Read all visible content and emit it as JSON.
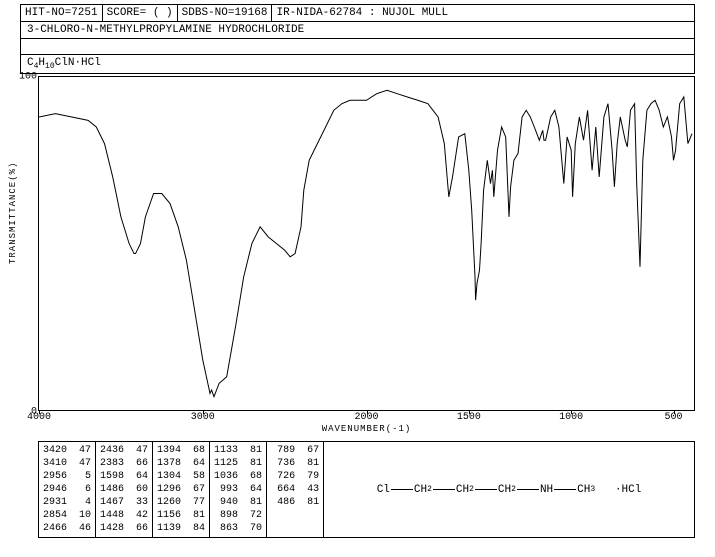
{
  "header": {
    "hit_no": "HIT-NO=7251",
    "score": "SCORE=  (  )",
    "sdbs": "SDBS-NO=19168",
    "ir": "IR-NIDA-62784 : NUJOL MULL"
  },
  "compound_name": "3-CHLORO-N-METHYLPROPYLAMINE HYDROCHLORIDE",
  "formula_plain": "C4H10ClN·HCl",
  "chart": {
    "y_label": "TRANSMITTANCE(%)",
    "x_label": "WAVENUMBER(-1)",
    "y_ticks": [
      {
        "val": "0",
        "pos": 0
      },
      {
        "val": "100",
        "pos": 100
      }
    ],
    "x_ticks": [
      {
        "val": "4000",
        "pos": 4000
      },
      {
        "val": "3000",
        "pos": 3000
      },
      {
        "val": "2000",
        "pos": 2000
      },
      {
        "val": "1500",
        "pos": 1500
      },
      {
        "val": "1000",
        "pos": 1000
      },
      {
        "val": "500",
        "pos": 500
      }
    ],
    "x_min": 400,
    "x_max": 4000,
    "y_min": 0,
    "y_max": 100,
    "line_color": "#000000",
    "background_color": "#ffffff",
    "spectrum": [
      [
        4000,
        88
      ],
      [
        3900,
        89
      ],
      [
        3800,
        88
      ],
      [
        3700,
        87
      ],
      [
        3650,
        85
      ],
      [
        3600,
        80
      ],
      [
        3550,
        70
      ],
      [
        3500,
        58
      ],
      [
        3450,
        50
      ],
      [
        3420,
        47
      ],
      [
        3410,
        47
      ],
      [
        3380,
        50
      ],
      [
        3350,
        58
      ],
      [
        3300,
        65
      ],
      [
        3250,
        65
      ],
      [
        3200,
        62
      ],
      [
        3150,
        55
      ],
      [
        3100,
        45
      ],
      [
        3050,
        30
      ],
      [
        3000,
        15
      ],
      [
        2956,
        5
      ],
      [
        2946,
        6
      ],
      [
        2931,
        4
      ],
      [
        2900,
        8
      ],
      [
        2854,
        10
      ],
      [
        2800,
        25
      ],
      [
        2750,
        40
      ],
      [
        2700,
        50
      ],
      [
        2650,
        55
      ],
      [
        2600,
        52
      ],
      [
        2550,
        50
      ],
      [
        2500,
        48
      ],
      [
        2466,
        46
      ],
      [
        2436,
        47
      ],
      [
        2400,
        55
      ],
      [
        2383,
        66
      ],
      [
        2350,
        75
      ],
      [
        2300,
        80
      ],
      [
        2250,
        85
      ],
      [
        2200,
        90
      ],
      [
        2150,
        92
      ],
      [
        2100,
        93
      ],
      [
        2050,
        93
      ],
      [
        2000,
        93
      ],
      [
        1950,
        95
      ],
      [
        1900,
        96
      ],
      [
        1850,
        95
      ],
      [
        1800,
        94
      ],
      [
        1750,
        93
      ],
      [
        1700,
        92
      ],
      [
        1650,
        88
      ],
      [
        1620,
        80
      ],
      [
        1598,
        64
      ],
      [
        1580,
        70
      ],
      [
        1550,
        82
      ],
      [
        1520,
        83
      ],
      [
        1500,
        72
      ],
      [
        1486,
        60
      ],
      [
        1470,
        40
      ],
      [
        1467,
        33
      ],
      [
        1460,
        38
      ],
      [
        1448,
        42
      ],
      [
        1440,
        50
      ],
      [
        1428,
        66
      ],
      [
        1410,
        75
      ],
      [
        1394,
        68
      ],
      [
        1385,
        72
      ],
      [
        1378,
        64
      ],
      [
        1360,
        78
      ],
      [
        1340,
        85
      ],
      [
        1320,
        82
      ],
      [
        1304,
        58
      ],
      [
        1296,
        67
      ],
      [
        1280,
        75
      ],
      [
        1260,
        77
      ],
      [
        1240,
        88
      ],
      [
        1220,
        90
      ],
      [
        1200,
        88
      ],
      [
        1180,
        85
      ],
      [
        1156,
        81
      ],
      [
        1139,
        84
      ],
      [
        1133,
        81
      ],
      [
        1125,
        81
      ],
      [
        1100,
        88
      ],
      [
        1080,
        90
      ],
      [
        1060,
        85
      ],
      [
        1036,
        68
      ],
      [
        1020,
        82
      ],
      [
        1000,
        78
      ],
      [
        993,
        64
      ],
      [
        980,
        80
      ],
      [
        960,
        88
      ],
      [
        940,
        81
      ],
      [
        920,
        90
      ],
      [
        898,
        72
      ],
      [
        880,
        85
      ],
      [
        863,
        70
      ],
      [
        840,
        88
      ],
      [
        820,
        92
      ],
      [
        800,
        78
      ],
      [
        789,
        67
      ],
      [
        775,
        80
      ],
      [
        760,
        88
      ],
      [
        750,
        85
      ],
      [
        736,
        81
      ],
      [
        726,
        79
      ],
      [
        710,
        90
      ],
      [
        690,
        92
      ],
      [
        680,
        68
      ],
      [
        664,
        43
      ],
      [
        650,
        75
      ],
      [
        630,
        90
      ],
      [
        610,
        92
      ],
      [
        590,
        93
      ],
      [
        570,
        90
      ],
      [
        550,
        85
      ],
      [
        530,
        88
      ],
      [
        510,
        82
      ],
      [
        500,
        75
      ],
      [
        490,
        78
      ],
      [
        486,
        81
      ],
      [
        470,
        92
      ],
      [
        450,
        94
      ],
      [
        430,
        80
      ],
      [
        410,
        83
      ]
    ]
  },
  "peaks": [
    [
      [
        "3420",
        "47"
      ],
      [
        "3410",
        "47"
      ],
      [
        "2956",
        " 5"
      ],
      [
        "2946",
        " 6"
      ],
      [
        "2931",
        " 4"
      ],
      [
        "2854",
        "10"
      ],
      [
        "2466",
        "46"
      ]
    ],
    [
      [
        "2436",
        "47"
      ],
      [
        "2383",
        "66"
      ],
      [
        "1598",
        "64"
      ],
      [
        "1486",
        "60"
      ],
      [
        "1467",
        "33"
      ],
      [
        "1448",
        "42"
      ],
      [
        "1428",
        "66"
      ]
    ],
    [
      [
        "1394",
        "68"
      ],
      [
        "1378",
        "64"
      ],
      [
        "1304",
        "58"
      ],
      [
        "1296",
        "67"
      ],
      [
        "1260",
        "77"
      ],
      [
        "1156",
        "81"
      ],
      [
        "1139",
        "84"
      ]
    ],
    [
      [
        "1133",
        "81"
      ],
      [
        "1125",
        "81"
      ],
      [
        "1036",
        "68"
      ],
      [
        " 993",
        "64"
      ],
      [
        " 940",
        "81"
      ],
      [
        " 898",
        "72"
      ],
      [
        " 863",
        "70"
      ]
    ],
    [
      [
        " 789",
        "67"
      ],
      [
        " 736",
        "81"
      ],
      [
        " 726",
        "79"
      ],
      [
        " 664",
        "43"
      ],
      [
        " 486",
        "81"
      ]
    ]
  ],
  "structure": {
    "parts": [
      "Cl",
      "CH",
      "CH",
      "CH",
      "NH",
      "CH"
    ],
    "salt": "·HCl"
  }
}
